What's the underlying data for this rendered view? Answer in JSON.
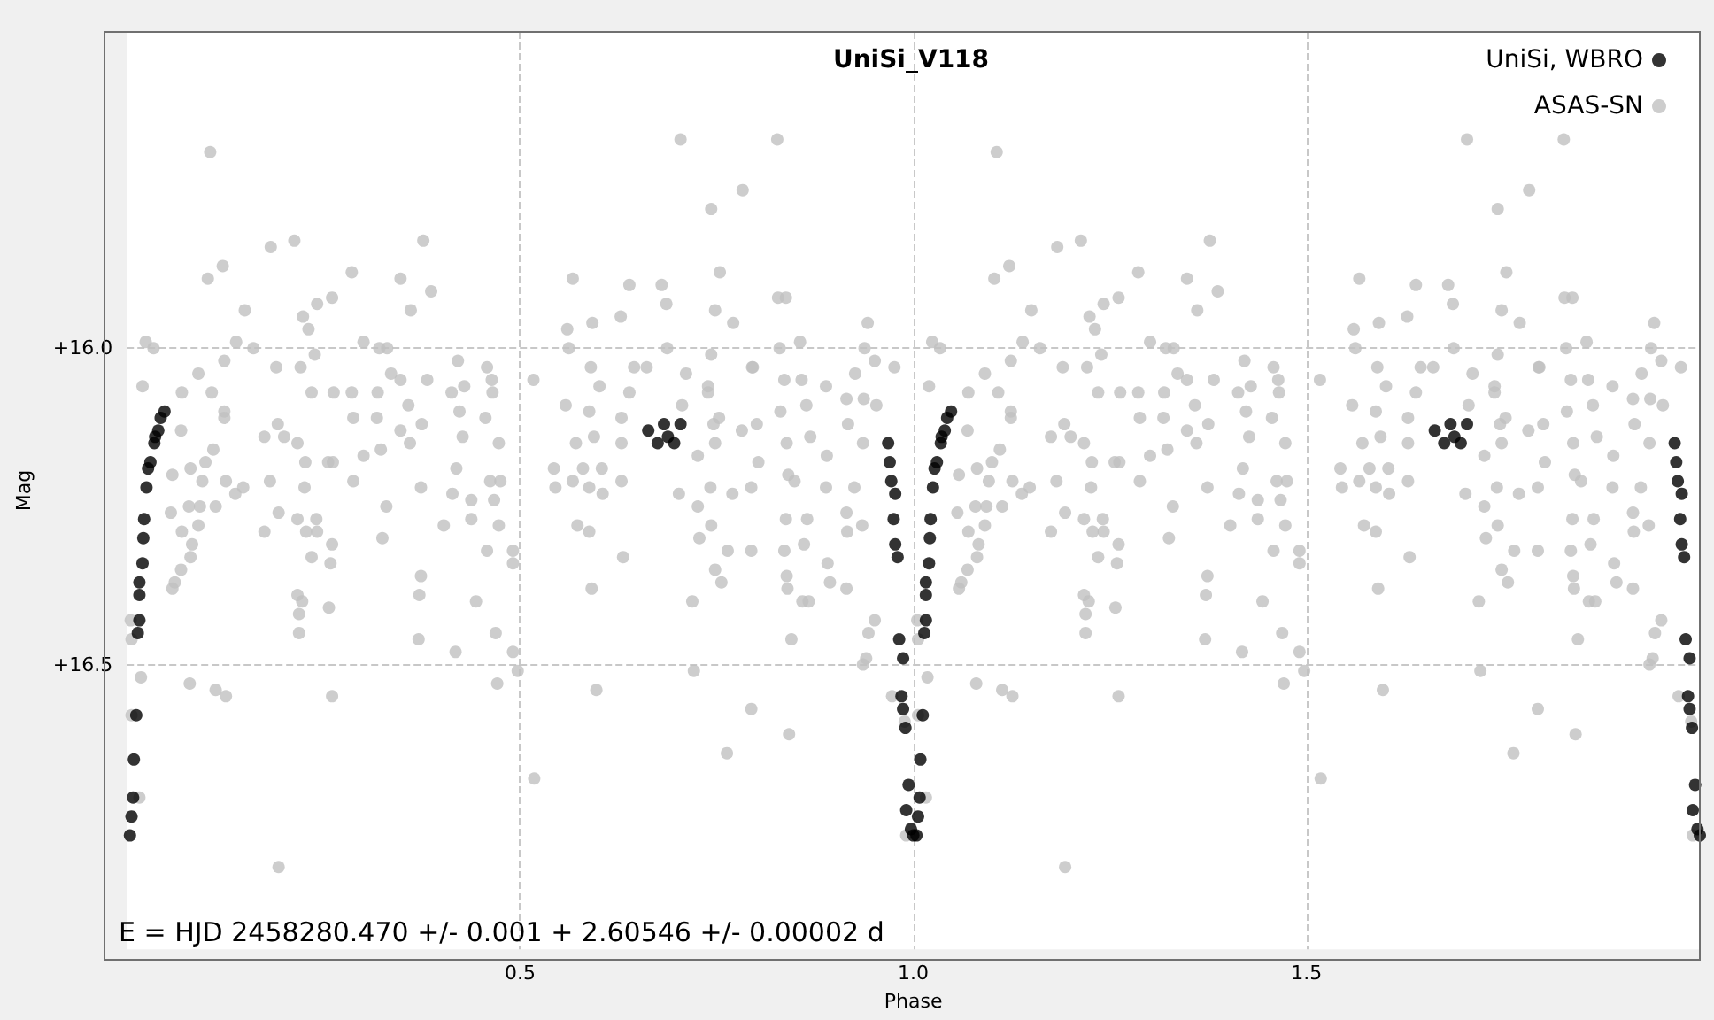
{
  "chart_data": {
    "type": "scatter",
    "title": "UniSi_V118",
    "xlabel": "Phase",
    "ylabel": "Mag",
    "xlim": [
      0,
      2
    ],
    "ylim": [
      16.95,
      15.5
    ],
    "xticks": [
      0.5,
      {
        "value": 1,
        "label": "1.0"
      },
      1.5
    ],
    "yticks": [
      {
        "value": 16,
        "label": "+16.0"
      },
      {
        "value": 16.5,
        "label": "+16.5"
      }
    ],
    "grid": true,
    "legend": "top right",
    "marker": "circle",
    "annotations": [
      "E = HJD 2458280.470 +/- 0.001 + 2.60546 +/- 0.00002 d"
    ],
    "series": [
      {
        "name": "UniSi, WBRO",
        "color": "#000000",
        "x": [
          0.004,
          0.006,
          0.008,
          0.009,
          0.012,
          0.014,
          0.016,
          0.016,
          0.016,
          0.02,
          0.021,
          0.022,
          0.025,
          0.027,
          0.03,
          0.035,
          0.036,
          0.04,
          0.043,
          0.048,
          0.663,
          0.675,
          0.688,
          0.704,
          0.696,
          0.683,
          0.968,
          0.97,
          0.972,
          0.977,
          0.975,
          0.977,
          0.98,
          0.982,
          0.987,
          0.985,
          0.987,
          0.99,
          0.994,
          0.991,
          0.997,
          1.0,
          1.004,
          1.006,
          1.008,
          1.009,
          1.012,
          1.014,
          1.016,
          1.016,
          1.016,
          1.02,
          1.021,
          1.022,
          1.025,
          1.027,
          1.03,
          1.035,
          1.036,
          1.04,
          1.043,
          1.048,
          1.663,
          1.675,
          1.688,
          1.704,
          1.696,
          1.683,
          1.968,
          1.97,
          1.972,
          1.977,
          1.975,
          1.977,
          1.98,
          1.982,
          1.987,
          1.985,
          1.987,
          1.99,
          1.994,
          1.991,
          1.997,
          2.0
        ],
        "values": [
          16.77,
          16.74,
          16.71,
          16.65,
          16.58,
          16.45,
          16.43,
          16.39,
          16.37,
          16.34,
          16.3,
          16.27,
          16.22,
          16.19,
          16.18,
          16.15,
          16.14,
          16.13,
          16.11,
          16.1,
          16.13,
          16.15,
          16.14,
          16.12,
          16.15,
          16.12,
          16.15,
          16.18,
          16.21,
          16.23,
          16.27,
          16.31,
          16.33,
          16.46,
          16.49,
          16.55,
          16.57,
          16.6,
          16.69,
          16.73,
          16.76,
          16.77,
          16.77,
          16.74,
          16.71,
          16.65,
          16.58,
          16.45,
          16.43,
          16.39,
          16.37,
          16.34,
          16.3,
          16.27,
          16.22,
          16.19,
          16.18,
          16.15,
          16.14,
          16.13,
          16.11,
          16.1,
          16.13,
          16.15,
          16.14,
          16.12,
          16.15,
          16.12,
          16.15,
          16.18,
          16.21,
          16.23,
          16.27,
          16.31,
          16.33,
          16.46,
          16.49,
          16.55,
          16.57,
          16.6,
          16.69,
          16.73,
          16.76,
          16.77
        ]
      },
      {
        "name": "ASAS-SN",
        "color": "#c0c0c0",
        "x": [
          0.106,
          0.183,
          0.213,
          0.103,
          0.122,
          0.15,
          0.377,
          0.348,
          0.387,
          0.361,
          0.286,
          0.261,
          0.242,
          0.224,
          0.024,
          0.034,
          0.139,
          0.161,
          0.231,
          0.239,
          0.301,
          0.331,
          0.321,
          0.02,
          0.091,
          0.108,
          0.124,
          0.19,
          0.221,
          0.235,
          0.263,
          0.286,
          0.319,
          0.336,
          0.348,
          0.382,
          0.421,
          0.413,
          0.429,
          0.458,
          0.464,
          0.07,
          0.124,
          0.124,
          0.175,
          0.192,
          0.2,
          0.217,
          0.227,
          0.256,
          0.301,
          0.323,
          0.288,
          0.318,
          0.358,
          0.348,
          0.375,
          0.36,
          0.423,
          0.427,
          0.456,
          0.473,
          0.465,
          0.069,
          0.058,
          0.081,
          0.1,
          0.11,
          0.096,
          0.056,
          0.079,
          0.093,
          0.113,
          0.138,
          0.148,
          0.126,
          0.182,
          0.193,
          0.226,
          0.262,
          0.288,
          0.33,
          0.374,
          0.419,
          0.414,
          0.438,
          0.462,
          0.475,
          0.467,
          0.07,
          0.083,
          0.091,
          0.175,
          0.217,
          0.228,
          0.241,
          0.242,
          0.261,
          0.325,
          0.403,
          0.438,
          0.473,
          0.081,
          0.069,
          0.061,
          0.058,
          0.235,
          0.259,
          0.458,
          0.491,
          0.491,
          0.374,
          0.372,
          0.444,
          0.217,
          0.223,
          0.219,
          0.219,
          0.257,
          0.005,
          0.006,
          0.371,
          0.418,
          0.469,
          0.491,
          0.497,
          0.018,
          0.08,
          0.113,
          0.126,
          0.261,
          0.471,
          0.006,
          0.016,
          0.518,
          0.193,
          0.517,
          0.704,
          0.827,
          0.783,
          0.743,
          0.567,
          0.639,
          0.68,
          0.686,
          0.754,
          0.748,
          0.771,
          0.828,
          0.838,
          0.942,
          0.592,
          0.628,
          0.56,
          0.562,
          0.687,
          0.743,
          0.796,
          0.83,
          0.856,
          0.938,
          0.976,
          0.951,
          0.59,
          0.645,
          0.661,
          0.711,
          0.739,
          0.836,
          0.858,
          0.889,
          0.926,
          0.601,
          0.639,
          0.558,
          0.588,
          0.629,
          0.706,
          0.739,
          0.795,
          0.831,
          0.864,
          0.915,
          0.937,
          0.953,
          0.571,
          0.594,
          0.629,
          0.746,
          0.753,
          0.782,
          0.801,
          0.839,
          0.869,
          0.917,
          0.936,
          0.726,
          0.748,
          0.803,
          0.89,
          0.543,
          0.58,
          0.604,
          0.629,
          0.545,
          0.567,
          0.588,
          0.605,
          0.702,
          0.742,
          0.77,
          0.794,
          0.841,
          0.849,
          0.889,
          0.925,
          0.915,
          0.726,
          0.838,
          0.865,
          0.916,
          0.573,
          0.588,
          0.743,
          0.728,
          0.935,
          0.631,
          0.764,
          0.794,
          0.836,
          0.861,
          0.748,
          0.756,
          0.839,
          0.891,
          0.84,
          0.894,
          0.915,
          0.591,
          0.719,
          0.859,
          0.867,
          0.951,
          0.943,
          0.845,
          0.94,
          0.936,
          0.721,
          0.597,
          0.794,
          0.842,
          0.763,
          0.973,
          0.989,
          0.991,
          1.106,
          1.183,
          1.213,
          1.103,
          1.122,
          1.15,
          1.377,
          1.348,
          1.387,
          1.361,
          1.286,
          1.261,
          1.242,
          1.224,
          1.024,
          1.034,
          1.139,
          1.161,
          1.231,
          1.239,
          1.301,
          1.331,
          1.321,
          1.02,
          1.091,
          1.108,
          1.124,
          1.19,
          1.221,
          1.235,
          1.263,
          1.286,
          1.319,
          1.336,
          1.348,
          1.382,
          1.421,
          1.413,
          1.429,
          1.458,
          1.464,
          1.07,
          1.124,
          1.124,
          1.175,
          1.192,
          1.2,
          1.217,
          1.227,
          1.256,
          1.301,
          1.323,
          1.288,
          1.318,
          1.358,
          1.348,
          1.375,
          1.36,
          1.423,
          1.427,
          1.456,
          1.473,
          1.465,
          1.069,
          1.058,
          1.081,
          1.1,
          1.11,
          1.096,
          1.056,
          1.079,
          1.093,
          1.113,
          1.138,
          1.148,
          1.126,
          1.182,
          1.193,
          1.226,
          1.262,
          1.288,
          1.33,
          1.374,
          1.419,
          1.414,
          1.438,
          1.462,
          1.475,
          1.467,
          1.07,
          1.083,
          1.091,
          1.175,
          1.217,
          1.228,
          1.241,
          1.242,
          1.261,
          1.325,
          1.403,
          1.438,
          1.473,
          1.081,
          1.069,
          1.061,
          1.058,
          1.235,
          1.259,
          1.458,
          1.491,
          1.491,
          1.374,
          1.372,
          1.444,
          1.217,
          1.223,
          1.219,
          1.219,
          1.257,
          1.005,
          1.006,
          1.371,
          1.418,
          1.469,
          1.491,
          1.497,
          1.018,
          1.08,
          1.113,
          1.126,
          1.261,
          1.471,
          1.006,
          1.016,
          1.518,
          1.193,
          1.517,
          1.704,
          1.827,
          1.783,
          1.743,
          1.567,
          1.639,
          1.68,
          1.686,
          1.754,
          1.748,
          1.771,
          1.828,
          1.838,
          1.942,
          1.592,
          1.628,
          1.56,
          1.562,
          1.687,
          1.743,
          1.796,
          1.83,
          1.856,
          1.938,
          1.976,
          1.951,
          1.59,
          1.645,
          1.661,
          1.711,
          1.739,
          1.836,
          1.858,
          1.889,
          1.926,
          1.601,
          1.639,
          1.558,
          1.588,
          1.629,
          1.706,
          1.739,
          1.795,
          1.831,
          1.864,
          1.915,
          1.937,
          1.953,
          1.571,
          1.594,
          1.629,
          1.746,
          1.753,
          1.782,
          1.801,
          1.839,
          1.869,
          1.917,
          1.936,
          1.726,
          1.748,
          1.803,
          1.89,
          1.543,
          1.58,
          1.604,
          1.629,
          1.545,
          1.567,
          1.588,
          1.605,
          1.702,
          1.742,
          1.77,
          1.794,
          1.841,
          1.849,
          1.889,
          1.925,
          1.915,
          1.726,
          1.838,
          1.865,
          1.916,
          1.573,
          1.588,
          1.743,
          1.728,
          1.935,
          1.631,
          1.764,
          1.794,
          1.836,
          1.861,
          1.748,
          1.756,
          1.839,
          1.891,
          1.84,
          1.894,
          1.915,
          1.591,
          1.719,
          1.859,
          1.867,
          1.951,
          1.943,
          1.845,
          1.94,
          1.936,
          1.721,
          1.597,
          1.794,
          1.842,
          1.763,
          1.973,
          1.989,
          1.991
        ],
        "values": [
          15.69,
          15.84,
          15.83,
          15.89,
          15.87,
          15.94,
          15.83,
          15.89,
          15.91,
          15.94,
          15.88,
          15.92,
          15.93,
          15.95,
          15.99,
          16.0,
          15.99,
          16.0,
          15.97,
          16.01,
          15.99,
          16.0,
          16.0,
          16.06,
          16.04,
          16.07,
          16.02,
          16.03,
          16.03,
          16.07,
          16.07,
          16.07,
          16.07,
          16.04,
          16.05,
          16.05,
          16.02,
          16.07,
          16.06,
          16.03,
          16.05,
          16.07,
          16.1,
          16.11,
          16.14,
          16.12,
          16.14,
          16.15,
          16.18,
          16.18,
          16.17,
          16.16,
          16.11,
          16.11,
          16.09,
          16.13,
          16.12,
          16.15,
          16.1,
          16.14,
          16.11,
          16.15,
          16.07,
          16.13,
          16.2,
          16.19,
          16.18,
          16.16,
          16.21,
          16.26,
          16.25,
          16.25,
          16.25,
          16.23,
          16.22,
          16.21,
          16.21,
          16.26,
          16.22,
          16.18,
          16.21,
          16.25,
          16.22,
          16.19,
          16.23,
          16.24,
          16.21,
          16.21,
          16.24,
          16.29,
          16.31,
          16.28,
          16.29,
          16.27,
          16.29,
          16.27,
          16.29,
          16.31,
          16.3,
          16.28,
          16.27,
          16.28,
          16.33,
          16.35,
          16.37,
          16.38,
          16.33,
          16.34,
          16.32,
          16.32,
          16.34,
          16.36,
          16.39,
          16.4,
          16.39,
          16.4,
          16.42,
          16.45,
          16.41,
          16.43,
          16.46,
          16.46,
          16.48,
          16.45,
          16.48,
          16.51,
          16.52,
          16.53,
          16.54,
          16.55,
          16.55,
          16.53,
          16.58,
          16.71,
          16.68,
          16.82,
          16.05,
          15.67,
          15.67,
          15.75,
          15.78,
          15.89,
          15.9,
          15.9,
          15.93,
          15.88,
          15.94,
          15.96,
          15.92,
          15.92,
          15.96,
          15.96,
          15.95,
          15.97,
          16.0,
          16.0,
          16.01,
          16.03,
          16.0,
          15.99,
          16.0,
          16.03,
          16.02,
          16.03,
          16.03,
          16.03,
          16.04,
          16.06,
          16.05,
          16.05,
          16.06,
          16.04,
          16.06,
          16.07,
          16.09,
          16.1,
          16.11,
          16.09,
          16.07,
          16.03,
          16.1,
          16.09,
          16.08,
          16.08,
          16.09,
          16.15,
          16.14,
          16.15,
          16.12,
          16.11,
          16.13,
          16.12,
          16.15,
          16.14,
          16.12,
          16.15,
          16.17,
          16.15,
          16.18,
          16.17,
          16.19,
          16.19,
          16.19,
          16.21,
          16.22,
          16.21,
          16.22,
          16.23,
          16.23,
          16.22,
          16.23,
          16.22,
          16.2,
          16.21,
          16.22,
          16.22,
          16.26,
          16.25,
          16.27,
          16.27,
          16.29,
          16.28,
          16.29,
          16.28,
          16.3,
          16.28,
          16.33,
          16.32,
          16.32,
          16.32,
          16.31,
          16.35,
          16.37,
          16.36,
          16.34,
          16.38,
          16.37,
          16.38,
          16.38,
          16.4,
          16.4,
          16.4,
          16.43,
          16.45,
          16.46,
          16.49,
          16.5,
          16.51,
          16.54,
          16.57,
          16.61,
          16.64,
          16.55,
          16.59,
          16.77,
          15.69,
          15.84,
          15.83,
          15.89,
          15.87,
          15.94,
          15.83,
          15.89,
          15.91,
          15.94,
          15.88,
          15.92,
          15.93,
          15.95,
          15.99,
          16.0,
          15.99,
          16.0,
          15.97,
          16.01,
          15.99,
          16.0,
          16.0,
          16.06,
          16.04,
          16.07,
          16.02,
          16.03,
          16.03,
          16.07,
          16.07,
          16.07,
          16.07,
          16.04,
          16.05,
          16.05,
          16.02,
          16.07,
          16.06,
          16.03,
          16.05,
          16.07,
          16.1,
          16.11,
          16.14,
          16.12,
          16.14,
          16.15,
          16.18,
          16.18,
          16.17,
          16.16,
          16.11,
          16.11,
          16.09,
          16.13,
          16.12,
          16.15,
          16.1,
          16.14,
          16.11,
          16.15,
          16.07,
          16.13,
          16.2,
          16.19,
          16.18,
          16.16,
          16.21,
          16.26,
          16.25,
          16.25,
          16.25,
          16.23,
          16.22,
          16.21,
          16.21,
          16.26,
          16.22,
          16.18,
          16.21,
          16.25,
          16.22,
          16.19,
          16.23,
          16.24,
          16.21,
          16.21,
          16.24,
          16.29,
          16.31,
          16.28,
          16.29,
          16.27,
          16.29,
          16.27,
          16.29,
          16.31,
          16.3,
          16.28,
          16.27,
          16.28,
          16.33,
          16.35,
          16.37,
          16.38,
          16.33,
          16.34,
          16.32,
          16.32,
          16.34,
          16.36,
          16.39,
          16.4,
          16.39,
          16.4,
          16.42,
          16.45,
          16.41,
          16.43,
          16.46,
          16.46,
          16.48,
          16.45,
          16.48,
          16.51,
          16.52,
          16.53,
          16.54,
          16.55,
          16.55,
          16.53,
          16.58,
          16.71,
          16.68,
          16.82,
          16.05,
          15.67,
          15.67,
          15.75,
          15.78,
          15.89,
          15.9,
          15.9,
          15.93,
          15.88,
          15.94,
          15.96,
          15.92,
          15.92,
          15.96,
          15.96,
          15.95,
          15.97,
          16.0,
          16.0,
          16.01,
          16.03,
          16.0,
          15.99,
          16.0,
          16.03,
          16.02,
          16.03,
          16.03,
          16.03,
          16.04,
          16.06,
          16.05,
          16.05,
          16.06,
          16.04,
          16.06,
          16.07,
          16.09,
          16.1,
          16.11,
          16.09,
          16.07,
          16.03,
          16.1,
          16.09,
          16.08,
          16.08,
          16.09,
          16.15,
          16.14,
          16.15,
          16.12,
          16.11,
          16.13,
          16.12,
          16.15,
          16.14,
          16.12,
          16.15,
          16.17,
          16.15,
          16.18,
          16.17,
          16.19,
          16.19,
          16.19,
          16.21,
          16.22,
          16.21,
          16.22,
          16.23,
          16.23,
          16.22,
          16.23,
          16.22,
          16.2,
          16.21,
          16.22,
          16.22,
          16.26,
          16.25,
          16.27,
          16.27,
          16.29,
          16.28,
          16.29,
          16.28,
          16.3,
          16.28,
          16.33,
          16.32,
          16.32,
          16.32,
          16.31,
          16.35,
          16.37,
          16.36,
          16.34,
          16.38,
          16.37,
          16.38,
          16.38,
          16.4,
          16.4,
          16.4,
          16.43,
          16.45,
          16.46,
          16.49,
          16.5,
          16.51,
          16.54,
          16.57,
          16.61,
          16.64,
          16.55,
          16.59,
          16.77
        ]
      }
    ]
  }
}
